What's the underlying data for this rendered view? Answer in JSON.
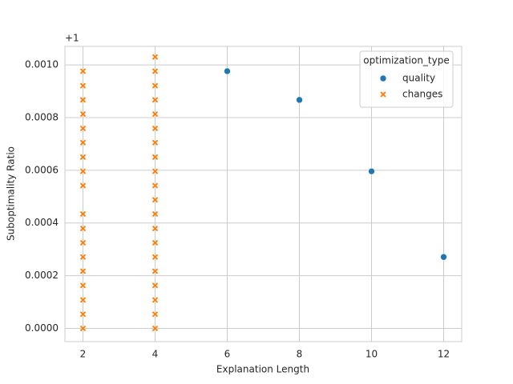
{
  "chart_data": {
    "type": "scatter",
    "x_label": "Explanation Length",
    "y_label": "Suboptimality Ratio",
    "y_offset_label": "+1",
    "xlim": [
      1.5,
      12.5
    ],
    "xticks": [
      2,
      4,
      6,
      8,
      10,
      12
    ],
    "ylim": [
      -5e-05,
      0.00107
    ],
    "yticks": [
      {
        "value": 0,
        "label": "0.0000"
      },
      {
        "value": 0.0002,
        "label": "0.0002"
      },
      {
        "value": 0.0004,
        "label": "0.0004"
      },
      {
        "value": 0.0006,
        "label": "0.0006"
      },
      {
        "value": 0.0008,
        "label": "0.0008"
      },
      {
        "value": 0.001,
        "label": "0.0010"
      }
    ],
    "grid": true,
    "legend_title": "optimization_type",
    "legend_position": "upper right",
    "series": [
      {
        "name": "quality",
        "color": "#1f77b4",
        "marker": "circle",
        "x": [
          6,
          8,
          10,
          12
        ],
        "values": [
          0.000976,
          0.000867,
          0.000596,
          0.000271
        ]
      },
      {
        "name": "changes",
        "color": "#ff7f0e",
        "marker": "x",
        "x": [
          2,
          2,
          2,
          2,
          2,
          2,
          2,
          2,
          2,
          2,
          2,
          2,
          2,
          2,
          2,
          2,
          2,
          2,
          4,
          4,
          4,
          4,
          4,
          4,
          4,
          4,
          4,
          4,
          4,
          4,
          4,
          4,
          4,
          4,
          4,
          4,
          4,
          4
        ],
        "values": [
          0,
          5.4e-05,
          0.000108,
          0.000163,
          0.000217,
          0.000271,
          0.000325,
          0.000379,
          0.000434,
          0.000542,
          0.000596,
          0.00065,
          0.000705,
          0.000759,
          0.000813,
          0.000867,
          0.000921,
          0.000976,
          0,
          5.4e-05,
          0.000108,
          0.000163,
          0.000217,
          0.000271,
          0.000325,
          0.000379,
          0.000434,
          0.000488,
          0.000542,
          0.000596,
          0.00065,
          0.000705,
          0.000759,
          0.000813,
          0.000867,
          0.000921,
          0.000976,
          0.00103
        ]
      }
    ]
  }
}
